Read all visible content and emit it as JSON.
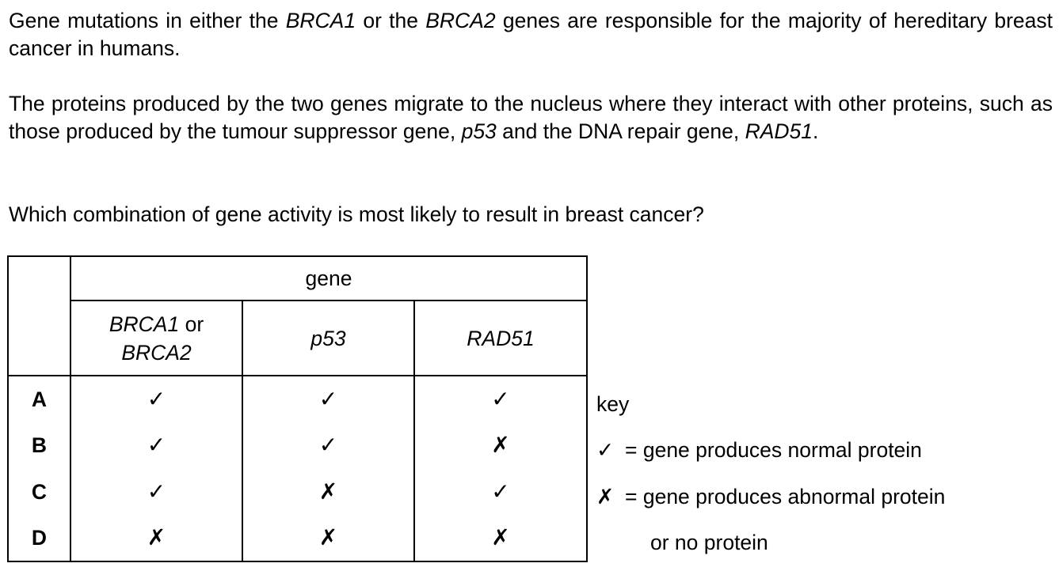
{
  "paragraphs": {
    "p1": {
      "t1": "Gene mutations in either the ",
      "i1": "BRCA1",
      "t2": " or the ",
      "i2": "BRCA2",
      "t3": " genes are responsible for the majority of hereditary breast cancer in humans."
    },
    "p2": {
      "t1": "The proteins produced by the two genes migrate to the nucleus where they interact with other proteins, such as those produced by the tumour suppressor gene, ",
      "i1": "p53",
      "t2": " and the DNA repair gene, ",
      "i2": "RAD51",
      "t3": "."
    },
    "p3": "Which combination of gene activity is most likely to result in breast cancer?"
  },
  "table": {
    "group_header": "gene",
    "columns": {
      "col1_italic": "BRCA1",
      "col1_mid": " or",
      "col1_line2": "BRCA2",
      "col2": "p53",
      "col3": "RAD51"
    },
    "rows": [
      {
        "letter": "A",
        "cells": [
          "✓",
          "✓",
          "✓"
        ]
      },
      {
        "letter": "B",
        "cells": [
          "✓",
          "✓",
          "✗"
        ]
      },
      {
        "letter": "C",
        "cells": [
          "✓",
          "✗",
          "✓"
        ]
      },
      {
        "letter": "D",
        "cells": [
          "✗",
          "✗",
          "✗"
        ]
      }
    ]
  },
  "key": {
    "title": "key",
    "items": [
      {
        "symbol": "✓",
        "text": "= gene produces normal protein"
      },
      {
        "symbol": "✗",
        "text": "= gene produces abnormal protein"
      }
    ],
    "continuation": "or no protein"
  }
}
